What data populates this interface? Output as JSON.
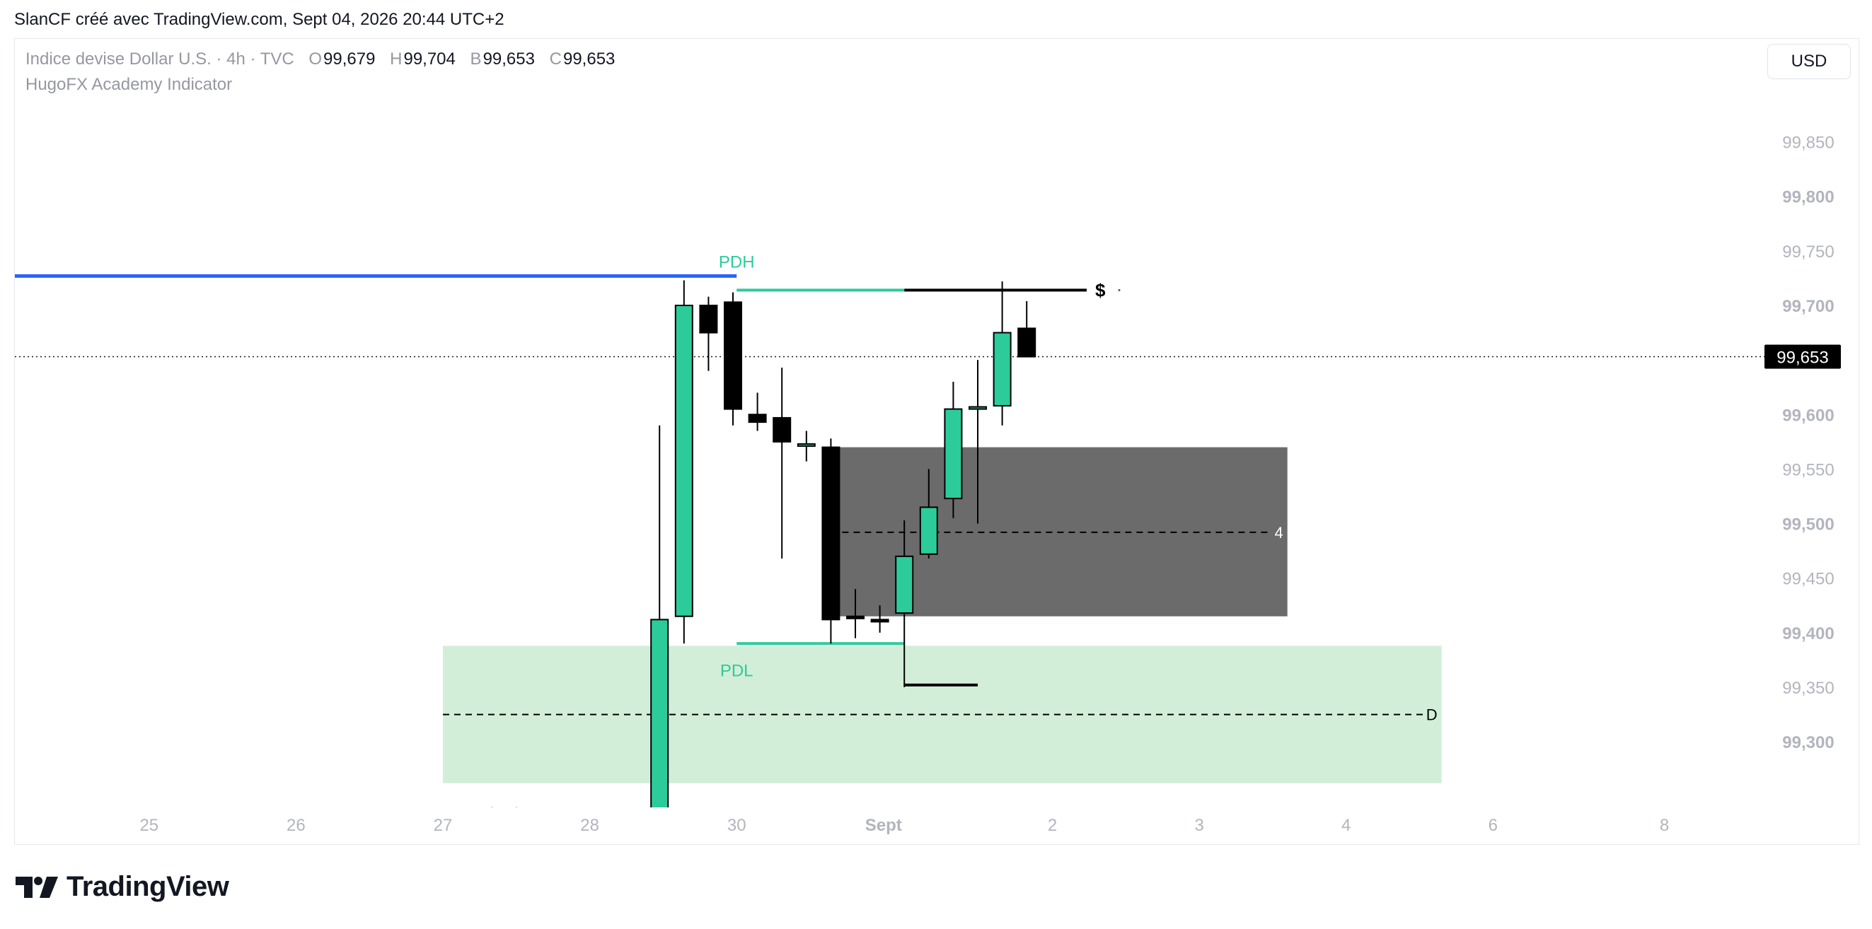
{
  "header": {
    "credit": "SlanCF créé avec TradingView.com, Sept 04, 2026 20:44 UTC+2"
  },
  "legend": {
    "symbol": "Indice devise Dollar U.S. · 4h · TVC",
    "open_label": "O",
    "open": "99,679",
    "high_label": "H",
    "high": "99,704",
    "low_label": "B",
    "low": "99,653",
    "close_label": "C",
    "close": "99,653",
    "indicator": "HugoFX Academy Indicator"
  },
  "currency": "USD",
  "brand": {
    "name": "TradingView",
    "icon": "tradingview-logo-icon"
  },
  "colors": {
    "bull": "#2bcc99",
    "bear": "#000000",
    "pdh_line": "#2962ff",
    "level_line": "#2bcc99",
    "zone_gray": "#6b6b6b",
    "zone_green": "#d3eed8",
    "axis_text": "#b2b5be"
  },
  "chart_data": {
    "type": "candlestick",
    "timeframe": "4h",
    "ylim": [
      99.225,
      99.925
    ],
    "y_ticks": [
      {
        "value": 99.85,
        "label": "99,850"
      },
      {
        "value": 99.8,
        "label": "99,800"
      },
      {
        "value": 99.75,
        "label": "99,750"
      },
      {
        "value": 99.7,
        "label": "99,700"
      },
      {
        "value": 99.6,
        "label": "99,600"
      },
      {
        "value": 99.55,
        "label": "99,550"
      },
      {
        "value": 99.5,
        "label": "99,500"
      },
      {
        "value": 99.45,
        "label": "99,450"
      },
      {
        "value": 99.4,
        "label": "99,400"
      },
      {
        "value": 99.35,
        "label": "99,350"
      },
      {
        "value": 99.3,
        "label": "99,300"
      }
    ],
    "x_ticks": [
      {
        "label": "25",
        "slot": -12.0
      },
      {
        "label": "26",
        "slot": -6.0
      },
      {
        "label": "27",
        "slot": 0.0
      },
      {
        "label": "28",
        "slot": 6.0
      },
      {
        "label": "30",
        "slot": 12.0
      },
      {
        "label": "Sept",
        "slot": 18.0,
        "bold": true
      },
      {
        "label": "2",
        "slot": 24.9
      },
      {
        "label": "3",
        "slot": 30.9
      },
      {
        "label": "4",
        "slot": 36.9
      },
      {
        "label": "6",
        "slot": 42.9
      },
      {
        "label": "8",
        "slot": 49.9
      }
    ],
    "candles": [
      {
        "slot": 2.0,
        "open": 99.226,
        "high": 99.24,
        "low": 99.222,
        "close": 99.223
      },
      {
        "slot": 3.0,
        "open": 99.226,
        "high": 99.24,
        "low": 99.222,
        "close": 99.223
      },
      {
        "slot": 8.85,
        "open": 99.225,
        "high": 99.59,
        "low": 99.225,
        "close": 99.412
      },
      {
        "slot": 9.85,
        "open": 99.415,
        "high": 99.723,
        "low": 99.39,
        "close": 99.7
      },
      {
        "slot": 10.85,
        "open": 99.7,
        "high": 99.708,
        "low": 99.64,
        "close": 99.675
      },
      {
        "slot": 11.85,
        "open": 99.703,
        "high": 99.712,
        "low": 99.59,
        "close": 99.605
      },
      {
        "slot": 12.85,
        "open": 99.6,
        "high": 99.62,
        "low": 99.585,
        "close": 99.593
      },
      {
        "slot": 13.85,
        "open": 99.597,
        "high": 99.643,
        "low": 99.468,
        "close": 99.575
      },
      {
        "slot": 14.85,
        "open": 99.573,
        "high": 99.585,
        "low": 99.557,
        "close": 99.573
      },
      {
        "slot": 15.85,
        "open": 99.57,
        "high": 99.578,
        "low": 99.39,
        "close": 99.412
      },
      {
        "slot": 16.85,
        "open": 99.415,
        "high": 99.44,
        "low": 99.395,
        "close": 99.413
      },
      {
        "slot": 17.85,
        "open": 99.412,
        "high": 99.425,
        "low": 99.4,
        "close": 99.41
      },
      {
        "slot": 18.85,
        "open": 99.418,
        "high": 99.503,
        "low": 99.35,
        "close": 99.47
      },
      {
        "slot": 19.85,
        "open": 99.472,
        "high": 99.55,
        "low": 99.468,
        "close": 99.515
      },
      {
        "slot": 20.85,
        "open": 99.523,
        "high": 99.63,
        "low": 99.505,
        "close": 99.605
      },
      {
        "slot": 21.85,
        "open": 99.605,
        "high": 99.65,
        "low": 99.5,
        "close": 99.607
      },
      {
        "slot": 22.85,
        "open": 99.608,
        "high": 99.722,
        "low": 99.59,
        "close": 99.675
      },
      {
        "slot": 23.85,
        "open": 99.679,
        "high": 99.704,
        "low": 99.653,
        "close": 99.653
      }
    ],
    "current_price": {
      "value": 99.653,
      "label": "99,653"
    },
    "levels": [
      {
        "name": "PDH",
        "value": 99.727,
        "from_slot": -25.0,
        "to_slot": 12.0,
        "color": "#2962ff"
      },
      {
        "name": "",
        "value": 99.714,
        "from_slot": 12.0,
        "to_slot": 18.85,
        "color": "#2bcc99"
      },
      {
        "name": "",
        "value": 99.714,
        "from_slot": 18.85,
        "to_slot": 26.3,
        "color": "#000000"
      },
      {
        "name": "PDL",
        "value": 99.39,
        "from_slot": 12.0,
        "to_slot": 18.85,
        "color": "#2bcc99"
      },
      {
        "name": "",
        "value": 99.352,
        "from_slot": 18.85,
        "to_slot": 21.85,
        "color": "#000000"
      }
    ],
    "liquidity_marker": "$",
    "zones": [
      {
        "label": "4",
        "top": 99.57,
        "bottom": 99.415,
        "mid": 99.492,
        "from_slot": 15.85,
        "to_slot": 34.5,
        "color": "#6b6b6b"
      },
      {
        "label": "D",
        "top": 99.388,
        "bottom": 99.262,
        "mid": 99.325,
        "from_slot": 0.0,
        "to_slot": 40.8,
        "color": "#d3eed8"
      }
    ]
  }
}
